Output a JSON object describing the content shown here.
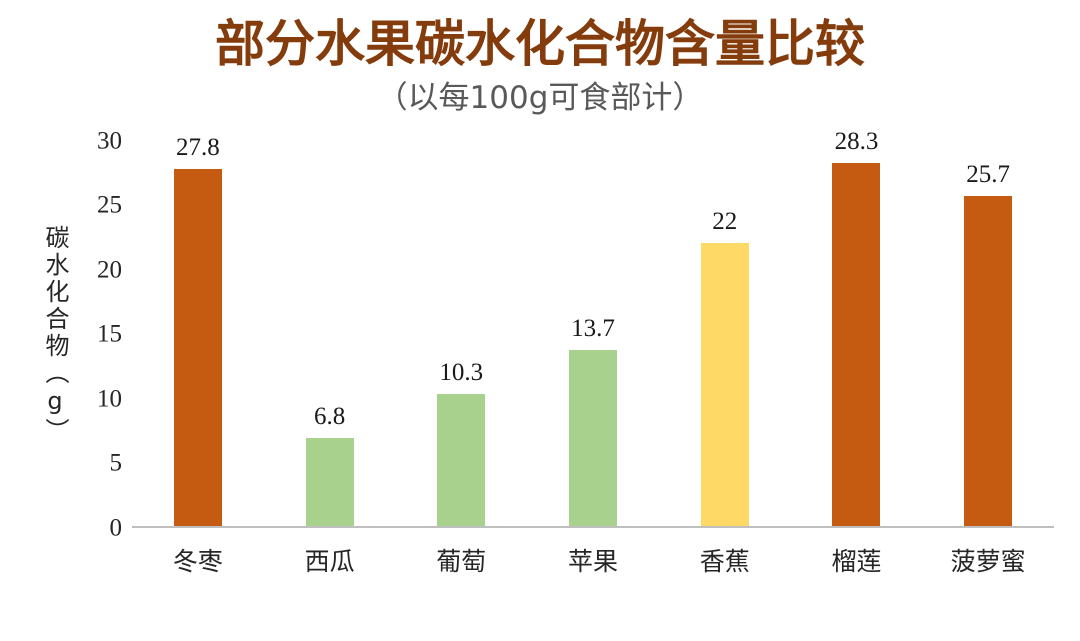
{
  "colors": {
    "background": "#FFFFFF",
    "title": "#843C0C",
    "subtitle": "#595959",
    "axis_line": "#BFBFBF",
    "text": "#262626",
    "orange_bar": "#C55A11",
    "green_bar": "#A9D18E",
    "yellow_bar": "#FFD966"
  },
  "chart_data": {
    "type": "bar",
    "title": "部分水果碳水化合物含量比较",
    "subtitle": "（以每100g可食部计）",
    "ylabel": "碳水化合物（g）",
    "xlabel": "",
    "categories": [
      "冬枣",
      "西瓜",
      "葡萄",
      "苹果",
      "香蕉",
      "榴莲",
      "菠萝蜜"
    ],
    "values": [
      27.8,
      6.8,
      10.3,
      13.7,
      22,
      28.3,
      25.7
    ],
    "value_labels": [
      "27.8",
      "6.8",
      "10.3",
      "13.7",
      "22",
      "28.3",
      "25.7"
    ],
    "bar_colors": [
      "#C55A11",
      "#A9D18E",
      "#A9D18E",
      "#A9D18E",
      "#FFD966",
      "#C55A11",
      "#C55A11"
    ],
    "ylim": [
      0,
      30
    ],
    "yticks": [
      0,
      5,
      10,
      15,
      20,
      25,
      30
    ],
    "grid": false,
    "legend": "none",
    "data_labels": true
  }
}
